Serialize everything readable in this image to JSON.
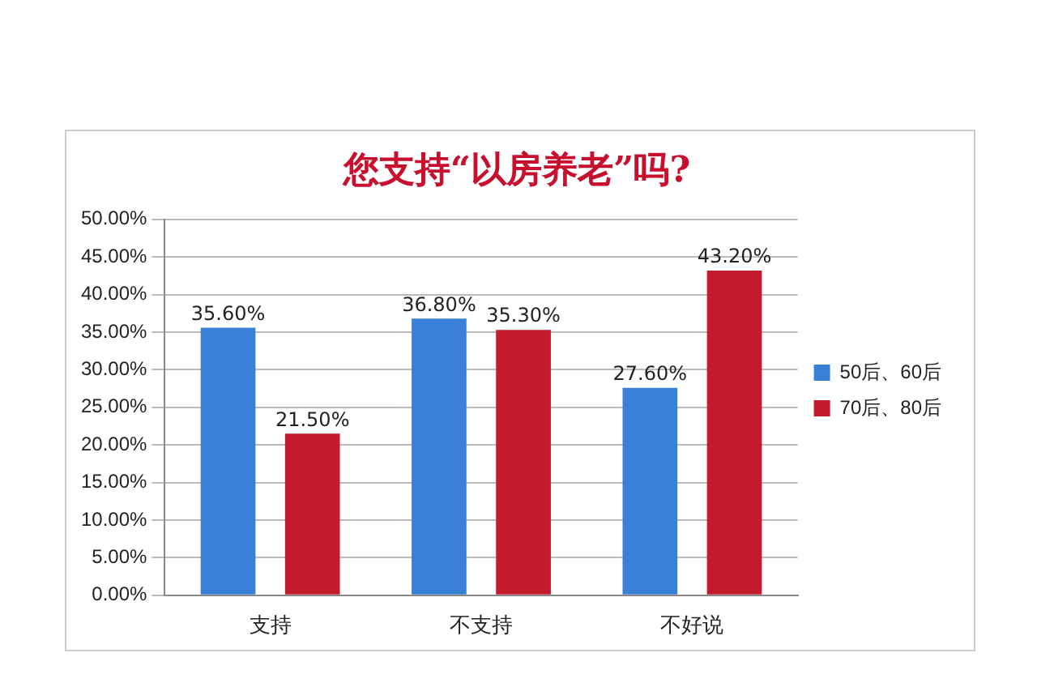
{
  "chart_data": {
    "type": "bar",
    "title": "您支持“以房养老”吗?",
    "categories": [
      "支持",
      "不支持",
      "不好说"
    ],
    "series": [
      {
        "name": "50后、60后",
        "color": "#3a80d6",
        "values": [
          35.6,
          36.8,
          27.6
        ],
        "value_labels": [
          "35.60%",
          "36.80%",
          "27.60%"
        ]
      },
      {
        "name": "70后、80后",
        "color": "#c41a2e",
        "values": [
          21.5,
          35.3,
          43.2
        ],
        "value_labels": [
          "21.50%",
          "35.30%",
          "43.20%"
        ]
      }
    ],
    "ylim": [
      0,
      50
    ],
    "yticks": [
      {
        "value": 0,
        "label": "0.00%"
      },
      {
        "value": 5,
        "label": "5.00%"
      },
      {
        "value": 10,
        "label": "10.00%"
      },
      {
        "value": 15,
        "label": "15.00%"
      },
      {
        "value": 20,
        "label": "20.00%"
      },
      {
        "value": 25,
        "label": "25.00%"
      },
      {
        "value": 30,
        "label": "30.00%"
      },
      {
        "value": 35,
        "label": "35.00%"
      },
      {
        "value": 40,
        "label": "40.00%"
      },
      {
        "value": 45,
        "label": "45.00%"
      },
      {
        "value": 50,
        "label": "50.00%"
      }
    ],
    "grid": "y",
    "legend": "right"
  }
}
